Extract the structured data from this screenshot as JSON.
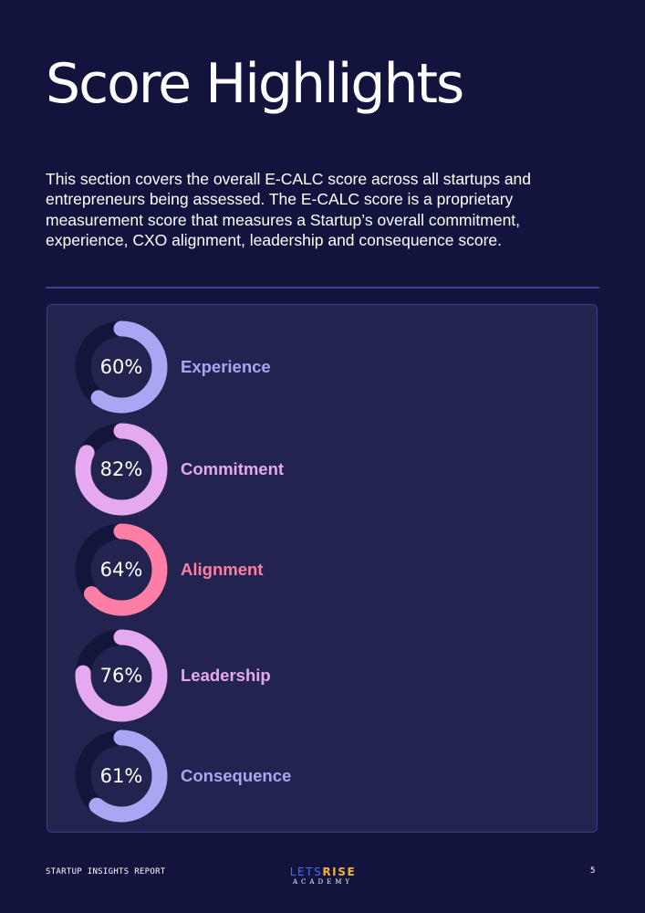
{
  "page": {
    "title": "Score Highlights",
    "intro": "This section covers the overall E-CALC score across all startups and entrepreneurs being assessed. The E-CALC score is a proprietary measurement score that measures a Startup’s overall commitment, experience, CXO alignment, leadership and consequence score."
  },
  "scores": [
    {
      "label": "Experience",
      "percent_text": "60%",
      "value": 60,
      "color": "#a9a6f3"
    },
    {
      "label": "Commitment",
      "percent_text": "82%",
      "value": 82,
      "color": "#e4a9ef"
    },
    {
      "label": "Alignment",
      "percent_text": "64%",
      "value": 64,
      "color": "#ff7ea6"
    },
    {
      "label": "Leadership",
      "percent_text": "76%",
      "value": 76,
      "color": "#e4a9ef"
    },
    {
      "label": "Consequence",
      "percent_text": "61%",
      "value": 61,
      "color": "#a9a6f3"
    }
  ],
  "colors": {
    "background": "#13143d",
    "panel": "#22234f",
    "gauge_track": "#14153a"
  },
  "footer": {
    "report_label": "STARTUP INSIGHTS REPORT",
    "logo_lets": "LETS",
    "logo_rise": "RISE",
    "logo_sub": "ACADEMY",
    "page_number": "5"
  }
}
